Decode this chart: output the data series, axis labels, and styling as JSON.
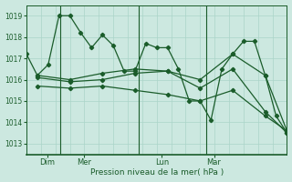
{
  "bg_color": "#cce8e0",
  "line_color": "#1a5c2a",
  "grid_color": "#aad4c8",
  "xlabel": "Pression niveau de la mer( hPa )",
  "ylim": [
    1012.5,
    1019.5
  ],
  "yticks": [
    1013,
    1014,
    1015,
    1016,
    1017,
    1018,
    1019
  ],
  "day_labels": [
    "Dim",
    "Mer",
    "Lun",
    "Mar"
  ],
  "day_positions": [
    0.08,
    0.22,
    0.52,
    0.72
  ],
  "vline_x": [
    0.13,
    0.43,
    0.69
  ],
  "series": [
    {
      "x": [
        0,
        1,
        2,
        3,
        4,
        5,
        6,
        7,
        8,
        9,
        10,
        11,
        12,
        13,
        14,
        15,
        16,
        17,
        18,
        19,
        20,
        21,
        22,
        23,
        24
      ],
      "y": [
        1017.2,
        1016.2,
        1016.7,
        1019.0,
        1019.0,
        1018.2,
        1017.5,
        1018.1,
        1017.6,
        1016.4,
        1016.4,
        1017.7,
        1017.5,
        1017.5,
        1016.5,
        1015.0,
        1015.0,
        1014.1,
        1016.5,
        1017.2,
        1017.8,
        1017.8,
        1016.2,
        1014.3,
        1013.5
      ]
    },
    {
      "x": [
        1,
        4,
        7,
        10,
        13,
        16,
        19,
        22,
        24
      ],
      "y": [
        1016.2,
        1016.0,
        1016.3,
        1016.5,
        1016.4,
        1016.0,
        1017.2,
        1016.2,
        1013.6
      ]
    },
    {
      "x": [
        1,
        4,
        7,
        10,
        13,
        16,
        19,
        22,
        24
      ],
      "y": [
        1015.7,
        1015.6,
        1015.7,
        1015.5,
        1015.3,
        1015.0,
        1015.5,
        1014.3,
        1013.6
      ]
    },
    {
      "x": [
        1,
        4,
        7,
        10,
        13,
        16,
        19,
        22,
        24
      ],
      "y": [
        1016.1,
        1015.9,
        1016.0,
        1016.3,
        1016.4,
        1015.6,
        1016.5,
        1014.5,
        1013.5
      ]
    }
  ],
  "total_points": 25
}
